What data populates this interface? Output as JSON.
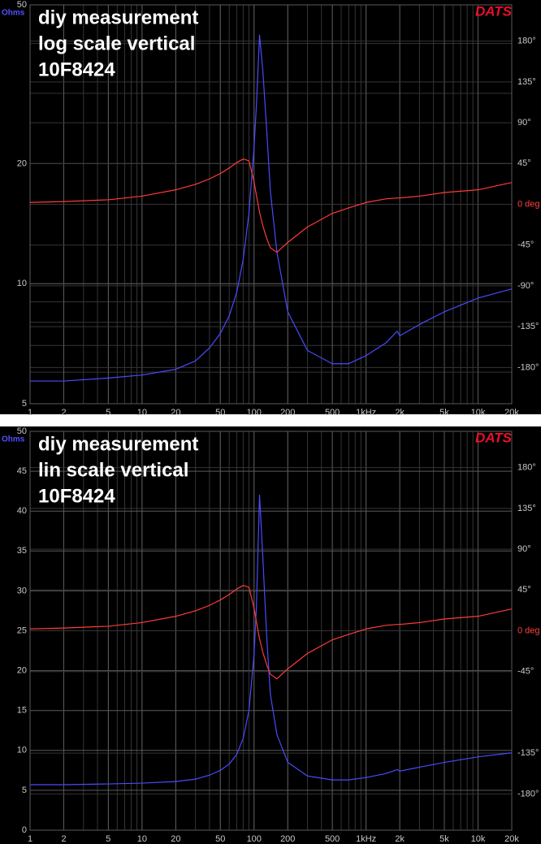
{
  "chart_data": [
    {
      "type": "line",
      "title": [
        "diy measurement",
        "log scale vertical",
        "10F8424"
      ],
      "logo": "DATS",
      "ylabel": "Ohms",
      "xscale": "log",
      "yscale": "log",
      "grid": true,
      "xlim": [
        1,
        20000
      ],
      "xticks": [
        1,
        2,
        5,
        10,
        20,
        50,
        100,
        200,
        500,
        {
          "value": 1000,
          "label": "1kHz"
        },
        {
          "value": 2000,
          "label": "2k"
        },
        {
          "value": 5000,
          "label": "5k"
        },
        {
          "value": 10000,
          "label": "10k"
        },
        {
          "value": 20000,
          "label": "20k"
        }
      ],
      "ylim": [
        5,
        50
      ],
      "yticks": [
        5,
        10,
        20,
        50
      ],
      "y2lim": [
        -220,
        220
      ],
      "y2ticks": [
        {
          "value": 180,
          "label": "180°"
        },
        {
          "value": 135,
          "label": "135°"
        },
        {
          "value": 90,
          "label": "90°"
        },
        {
          "value": 45,
          "label": "45°"
        },
        {
          "value": 0,
          "label": "0 deg"
        },
        {
          "value": -45,
          "label": "-45°"
        },
        {
          "value": -90,
          "label": "-90°"
        },
        {
          "value": -135,
          "label": "-135°"
        },
        {
          "value": -180,
          "label": "-180°"
        }
      ],
      "x": [
        1,
        2,
        5,
        10,
        20,
        30,
        40,
        50,
        60,
        70,
        80,
        90,
        100,
        105,
        112,
        120,
        130,
        140,
        160,
        200,
        300,
        500,
        700,
        1000,
        1500,
        1900,
        2000,
        3000,
        5000,
        10000,
        20000
      ],
      "series": [
        {
          "color": "#4a4aff",
          "values": [
            5.7,
            5.7,
            5.8,
            5.9,
            6.1,
            6.4,
            6.9,
            7.5,
            8.3,
            9.5,
            11.5,
            15,
            22,
            28,
            42,
            34,
            24,
            17,
            12,
            8.5,
            6.8,
            6.3,
            6.3,
            6.6,
            7.1,
            7.6,
            7.4,
            7.9,
            8.5,
            9.2,
            9.7
          ]
        },
        {
          "color": "#ff3a3a",
          "axis": "y2",
          "values": [
            2,
            3,
            5,
            9,
            16,
            22,
            28,
            34,
            40,
            46,
            50,
            48,
            25,
            10,
            -9,
            -24,
            -38,
            -48,
            -53,
            -42,
            -25,
            -10,
            -4,
            2,
            6,
            7,
            7,
            9,
            13,
            16,
            24
          ]
        }
      ]
    },
    {
      "type": "line",
      "title": [
        "diy measurement",
        "lin scale vertical",
        "10F8424"
      ],
      "logo": "DATS",
      "ylabel": "Ohms",
      "xscale": "log",
      "yscale": "linear",
      "grid": true,
      "xlim": [
        1,
        20000
      ],
      "xticks": [
        1,
        2,
        5,
        10,
        20,
        50,
        100,
        200,
        500,
        {
          "value": 1000,
          "label": "1kHz"
        },
        {
          "value": 2000,
          "label": "2k"
        },
        {
          "value": 5000,
          "label": "5k"
        },
        {
          "value": 10000,
          "label": "10k"
        },
        {
          "value": 20000,
          "label": "20k"
        }
      ],
      "ylim": [
        0,
        50
      ],
      "yticks": [
        0,
        5,
        10,
        15,
        20,
        25,
        30,
        35,
        40,
        45,
        50
      ],
      "y2lim": [
        -220,
        220
      ],
      "y2ticks": [
        {
          "value": 180,
          "label": "180°"
        },
        {
          "value": 135,
          "label": "135°"
        },
        {
          "value": 90,
          "label": "90°"
        },
        {
          "value": 45,
          "label": "45°"
        },
        {
          "value": 0,
          "label": "0 deg"
        },
        {
          "value": -45,
          "label": "-45°"
        },
        {
          "value": -135,
          "label": "-135°"
        },
        {
          "value": -180,
          "label": "-180°"
        }
      ],
      "x": [
        1,
        2,
        5,
        10,
        20,
        30,
        40,
        50,
        60,
        70,
        80,
        90,
        100,
        105,
        112,
        120,
        130,
        140,
        160,
        200,
        300,
        500,
        700,
        1000,
        1500,
        1900,
        2000,
        3000,
        5000,
        10000,
        20000
      ],
      "series": [
        {
          "color": "#4a4aff",
          "values": [
            5.7,
            5.7,
            5.8,
            5.9,
            6.1,
            6.4,
            6.9,
            7.5,
            8.3,
            9.5,
            11.5,
            15,
            22,
            28,
            42,
            34,
            24,
            17,
            12,
            8.5,
            6.8,
            6.3,
            6.3,
            6.6,
            7.1,
            7.6,
            7.4,
            7.9,
            8.5,
            9.2,
            9.7
          ]
        },
        {
          "color": "#ff3a3a",
          "axis": "y2",
          "values": [
            2,
            3,
            5,
            9,
            16,
            22,
            28,
            34,
            40,
            46,
            50,
            48,
            25,
            10,
            -9,
            -24,
            -38,
            -48,
            -53,
            -42,
            -25,
            -10,
            -4,
            2,
            6,
            7,
            7,
            9,
            13,
            16,
            24
          ]
        }
      ]
    }
  ]
}
